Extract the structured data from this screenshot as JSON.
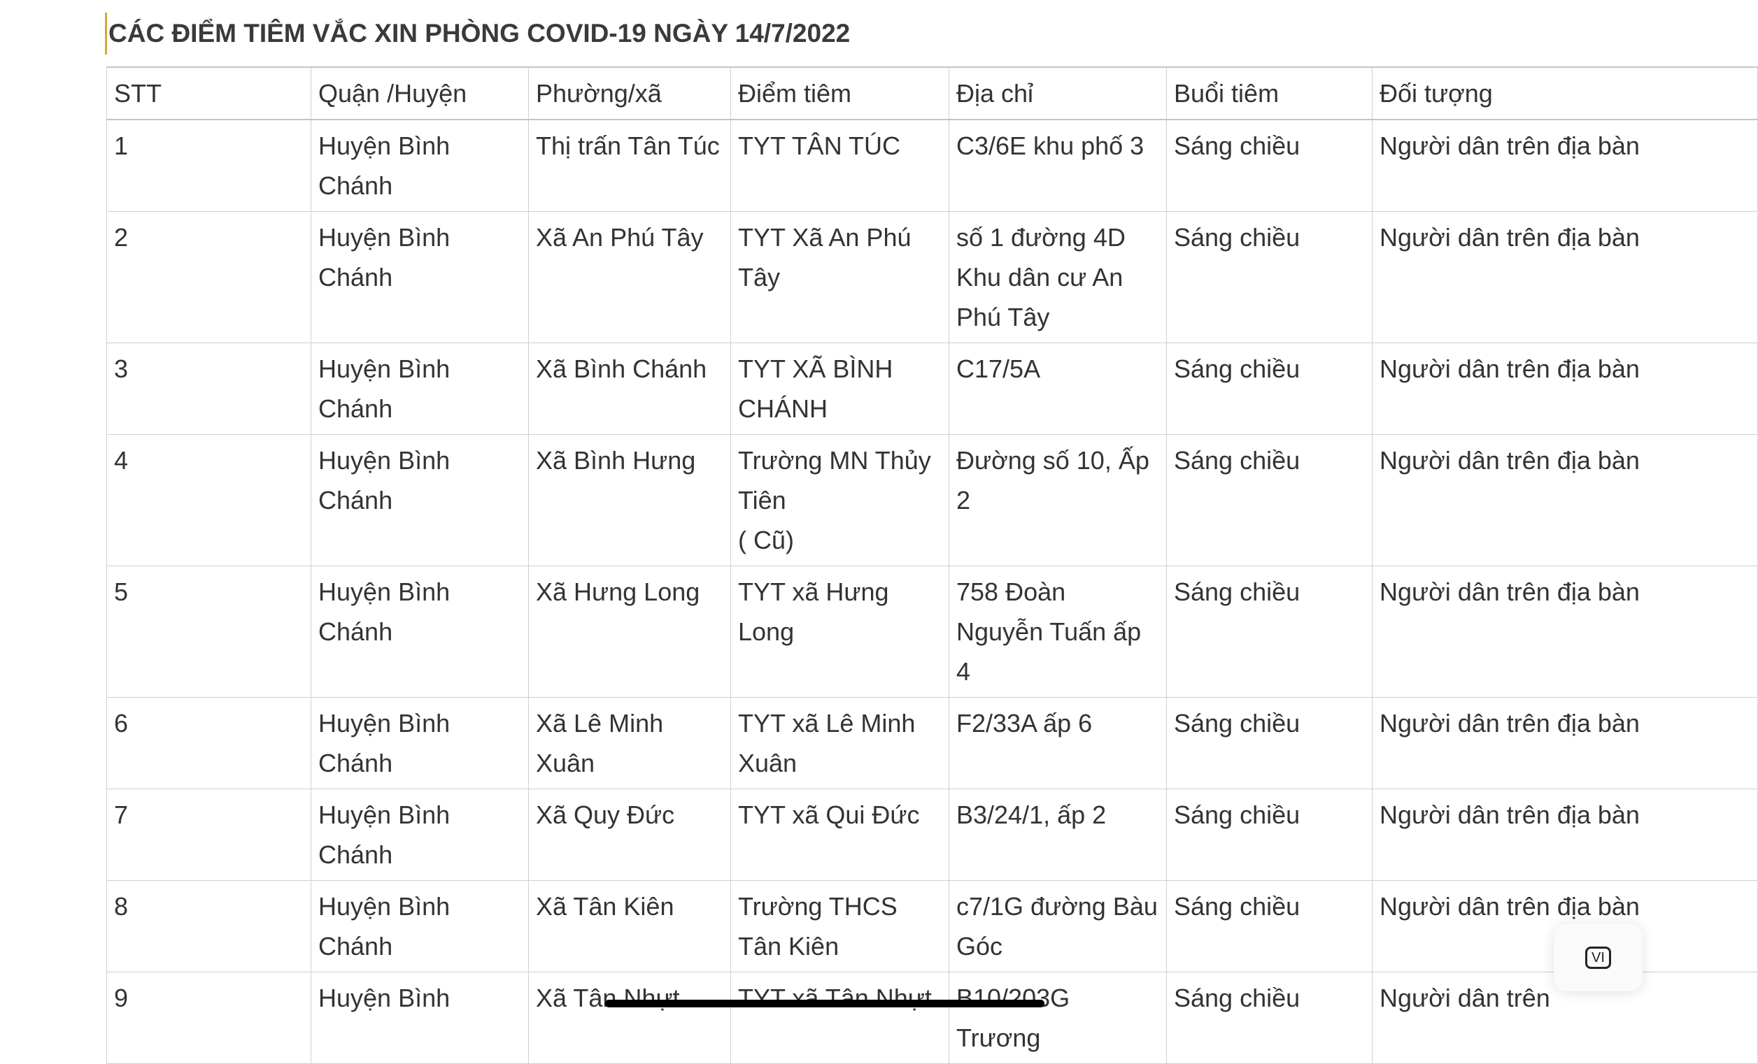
{
  "title": "CÁC ĐIỂM TIÊM VẮC XIN PHÒNG COVID-19 NGÀY 14/7/2022",
  "table": {
    "headers": [
      "STT",
      "Quận /Huyện",
      "Phường/xã",
      "Điểm tiêm",
      "Địa chỉ",
      "Buổi tiêm",
      "Đối tượng"
    ],
    "rows": [
      [
        "1",
        "Huyện  Bình Chánh",
        "Thị trấn Tân Túc",
        "TYT TÂN TÚC",
        "C3/6E khu phố 3",
        "Sáng chiều",
        "Người dân trên địa bàn"
      ],
      [
        "2",
        "Huyện  Bình Chánh",
        "Xã An Phú Tây",
        "TYT Xã An Phú Tây",
        "số 1 đường 4D Khu dân cư An Phú Tây",
        "Sáng chiều",
        "Người dân trên địa bàn"
      ],
      [
        "3",
        "Huyện  Bình Chánh",
        "Xã Bình Chánh",
        "TYT XÃ BÌNH CHÁNH",
        "C17/5A",
        "Sáng chiều",
        "Người dân trên địa bàn"
      ],
      [
        "4",
        "Huyện  Bình Chánh",
        "Xã Bình Hưng",
        "Trường MN Thủy Tiên\n( Cũ)",
        "Đường số 10, Ấp 2",
        "Sáng chiều",
        "Người dân trên địa bàn"
      ],
      [
        "5",
        "Huyện  Bình Chánh",
        "Xã Hưng Long",
        "TYT xã Hưng Long",
        "758 Đoàn Nguyễn Tuấn ấp 4",
        "Sáng chiều",
        "Người dân trên địa bàn"
      ],
      [
        "6",
        "Huyện  Bình Chánh",
        "Xã Lê Minh Xuân",
        "TYT xã Lê Minh Xuân",
        "F2/33A ấp 6",
        "Sáng chiều",
        "Người dân trên địa bàn"
      ],
      [
        "7",
        "Huyện  Bình Chánh",
        "Xã Quy Đức",
        "TYT xã Qui Đức",
        "B3/24/1, ấp 2",
        "Sáng chiều",
        "Người dân trên địa bàn"
      ],
      [
        "8",
        "Huyện  Bình Chánh",
        "Xã Tân Kiên",
        "Trường THCS Tân Kiên",
        "c7/1G đường Bàu Góc",
        "Sáng chiều",
        "Người dân trên địa bàn"
      ],
      [
        "9",
        "Huyện  Bình",
        "Xã Tân Nhựt",
        "TYT xã Tân Nhựt",
        "B10/203G Trương",
        "Sáng chiều",
        "Người dân trên"
      ]
    ]
  },
  "language_button": {
    "label": "VI",
    "icon": "language-icon"
  }
}
